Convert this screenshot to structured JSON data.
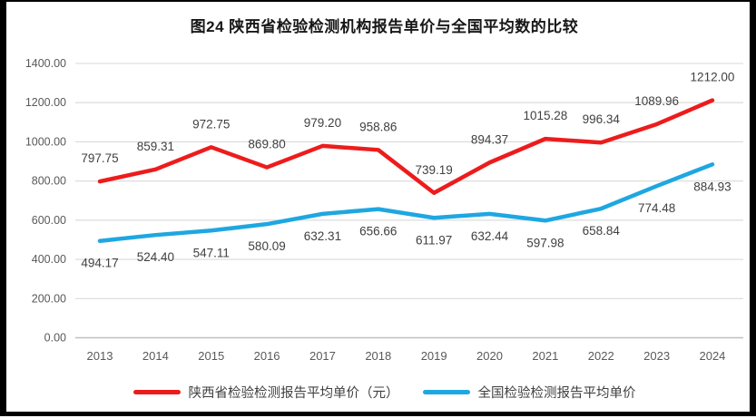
{
  "title": "图24 陕西省检验检测机构报告单价与全国平均数的比较",
  "colors": {
    "shaanxi_red": "#ED1C1C",
    "national_blue": "#1EA7E1",
    "gridline": "#D9D9D9",
    "axis_line": "#BFBFBF",
    "axis_text": "#595959",
    "label_text": "#404040",
    "frame": "#000000"
  },
  "chart_data": {
    "type": "line",
    "title": "图24 陕西省检验检测机构报告单价与全国平均数的比较",
    "categories": [
      "2013",
      "2014",
      "2015",
      "2016",
      "2017",
      "2018",
      "2019",
      "2020",
      "2021",
      "2022",
      "2023",
      "2024"
    ],
    "series": [
      {
        "name": "陕西省检验检测报告平均单价（元）",
        "color_key": "shaanxi_red",
        "values": [
          797.75,
          859.31,
          972.75,
          869.8,
          979.2,
          958.86,
          739.19,
          894.37,
          1015.28,
          996.34,
          1089.96,
          1212.0
        ]
      },
      {
        "name": "全国检验检测报告平均单价",
        "color_key": "national_blue",
        "values": [
          494.17,
          524.4,
          547.11,
          580.09,
          632.31,
          656.66,
          611.97,
          632.44,
          597.98,
          658.84,
          774.48,
          884.93
        ]
      }
    ],
    "xlabel": "",
    "ylabel": "",
    "ylim": [
      0,
      1400
    ],
    "ytick_step": 200,
    "ytick_labels": [
      "0.00",
      "200.00",
      "400.00",
      "600.00",
      "800.00",
      "1000.00",
      "1200.00",
      "1400.00"
    ],
    "grid": true,
    "data_labels": true,
    "legend_position": "bottom"
  }
}
